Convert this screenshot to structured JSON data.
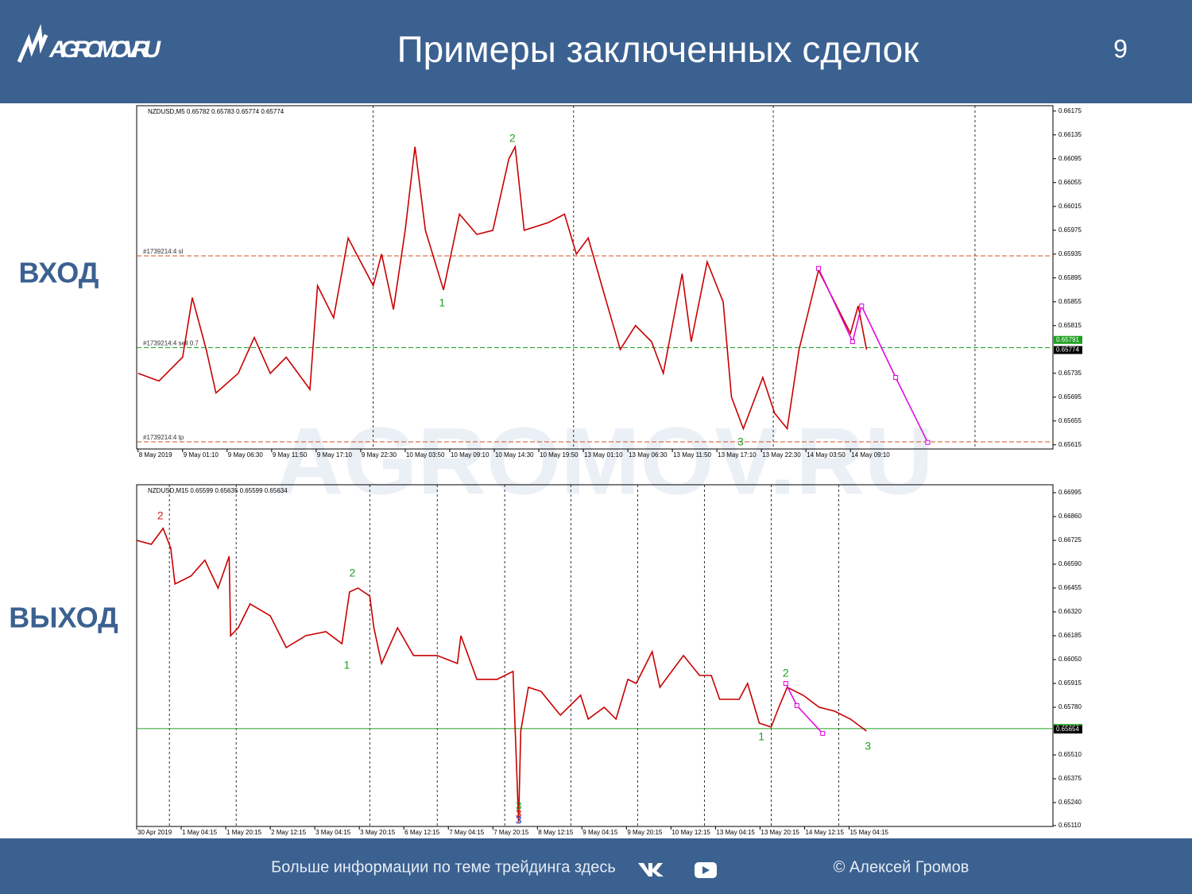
{
  "header": {
    "logo": "AGROMOV.RU",
    "title": "Примеры заключенных сделок",
    "page": "9"
  },
  "labels": {
    "entry": "ВХОД",
    "exit": "ВЫХОД"
  },
  "watermark": "AGROMOV.RU",
  "footer": {
    "info": "Больше информации по теме трейдинга здесь",
    "copyright": "© Алексей Громов"
  },
  "chart_data": [
    {
      "type": "line",
      "title": "NZDUSD,M5  0.65782 0.65783 0.65774 0.65774",
      "color": "#c80000",
      "x": [
        0,
        30,
        64,
        78,
        98,
        112,
        144,
        167,
        190,
        213,
        247,
        258,
        281,
        302,
        338,
        350,
        367,
        384,
        398,
        413,
        439,
        462,
        487,
        510,
        533,
        542,
        555,
        590,
        613,
        630,
        647,
        670,
        693,
        715,
        738,
        755,
        782,
        795,
        818,
        841,
        853,
        870,
        898,
        915,
        933,
        950,
        978,
        1001,
        1024,
        1035,
        1047
      ],
      "values": [
        0.65735,
        0.65722,
        0.65762,
        0.65862,
        0.65775,
        0.65702,
        0.65735,
        0.65795,
        0.65735,
        0.65762,
        0.65708,
        0.65882,
        0.65828,
        0.65962,
        0.65882,
        0.65935,
        0.65842,
        0.65975,
        0.66115,
        0.65975,
        0.65875,
        0.66002,
        0.65968,
        0.65975,
        0.66095,
        0.66115,
        0.65975,
        0.65988,
        0.66002,
        0.65935,
        0.65962,
        0.65868,
        0.65775,
        0.65815,
        0.65788,
        0.65735,
        0.65902,
        0.65788,
        0.65922,
        0.65855,
        0.65695,
        0.65642,
        0.65728,
        0.65668,
        0.65642,
        0.65775,
        0.65908,
        0.65855,
        0.65802,
        0.65848,
        0.65775
      ],
      "projection": {
        "color": "#e000e0",
        "x": [
          978,
          1027,
          1040,
          1089,
          1135
        ],
        "values": [
          0.65911,
          0.65788,
          0.65848,
          0.65728,
          0.65619
        ]
      },
      "xlim": [
        -2,
        1315
      ],
      "xticks": [
        {
          "value": 0,
          "label": "8 May 2019"
        },
        {
          "value": 64,
          "label": "9 May 01:10"
        },
        {
          "value": 128,
          "label": "9 May 06:30"
        },
        {
          "value": 192,
          "label": "9 May 11:50"
        },
        {
          "value": 256,
          "label": "9 May 17:10"
        },
        {
          "value": 320,
          "label": "9 May 22:30"
        },
        {
          "value": 384,
          "label": "10 May 03:50"
        },
        {
          "value": 448,
          "label": "10 May 09:10"
        },
        {
          "value": 512,
          "label": "10 May 14:30"
        },
        {
          "value": 576,
          "label": "10 May 19:50"
        },
        {
          "value": 640,
          "label": "13 May 01:10"
        },
        {
          "value": 704,
          "label": "13 May 06:30"
        },
        {
          "value": 768,
          "label": "13 May 11:50"
        },
        {
          "value": 832,
          "label": "13 May 17:10"
        },
        {
          "value": 896,
          "label": "13 May 22:30"
        },
        {
          "value": 960,
          "label": "14 May 03:50"
        },
        {
          "value": 1024,
          "label": "14 May 09:10"
        }
      ],
      "ylim": [
        0.65608,
        0.66184
      ],
      "yticks": [
        0.66175,
        0.66135,
        0.66095,
        0.66055,
        0.66015,
        0.65975,
        0.65935,
        0.65895,
        0.65855,
        0.65815,
        0.65735,
        0.65695,
        0.65655,
        0.65615
      ],
      "separators": [
        338,
        626,
        913,
        1203
      ],
      "levels": [
        {
          "value": 0.65932,
          "label": "#1739214:4 sl",
          "color": "#d05020"
        },
        {
          "value": 0.65778,
          "label": "#1739214:4 sell 0.7",
          "color": "#20a020"
        },
        {
          "value": 0.6562,
          "label": "#1739214:4 tp",
          "color": "#d05020"
        }
      ],
      "price_labels": [
        {
          "value": 0.65791,
          "color": "#20a020"
        },
        {
          "value": 0.65774,
          "color": "#000000"
        }
      ],
      "waves": [
        {
          "text": "1",
          "x": 437,
          "y": 0.65852,
          "color": "#20a020"
        },
        {
          "text": "2",
          "x": 538,
          "y": 0.66128,
          "color": "#20a020"
        },
        {
          "text": "3",
          "x": 866,
          "y": 0.65619,
          "color": "#20a020"
        }
      ]
    },
    {
      "type": "line",
      "title": "NZDUSD,M15  0.65599 0.65635 0.65599 0.65634",
      "color": "#c80000",
      "x": [
        0,
        21,
        38,
        49,
        55,
        78,
        98,
        117,
        133,
        135,
        146,
        163,
        192,
        215,
        243,
        272,
        295,
        306,
        318,
        335,
        341,
        352,
        375,
        398,
        432,
        461,
        466,
        489,
        518,
        541,
        549,
        552,
        563,
        581,
        609,
        638,
        649,
        672,
        689,
        706,
        718,
        741,
        752,
        786,
        809,
        826,
        838,
        866,
        878,
        895,
        912,
        923,
        935,
        958,
        981,
        1003,
        1026,
        1049
      ],
      "values": [
        0.66725,
        0.66703,
        0.66793,
        0.6668,
        0.66478,
        0.66523,
        0.66613,
        0.66455,
        0.66635,
        0.66185,
        0.6623,
        0.66365,
        0.66298,
        0.66118,
        0.66185,
        0.66208,
        0.6614,
        0.66433,
        0.66455,
        0.6641,
        0.6623,
        0.66028,
        0.6623,
        0.66073,
        0.66073,
        0.66028,
        0.66185,
        0.65938,
        0.65938,
        0.65983,
        0.65128,
        0.65645,
        0.65893,
        0.6587,
        0.65735,
        0.65848,
        0.65713,
        0.6578,
        0.65713,
        0.65938,
        0.65915,
        0.66095,
        0.65893,
        0.66073,
        0.6596,
        0.6596,
        0.65825,
        0.65825,
        0.65915,
        0.6569,
        0.65668,
        0.6578,
        0.65893,
        0.65848,
        0.6578,
        0.65758,
        0.65713,
        0.65645
      ],
      "projection": {
        "color": "#e000e0",
        "x": [
          933,
          949,
          986
        ],
        "values": [
          0.65915,
          0.65789,
          0.65632
        ]
      },
      "xlim": [
        0,
        1317
      ],
      "xticks": [
        {
          "value": 0,
          "label": "30 Apr 2019"
        },
        {
          "value": 64,
          "label": "1 May 04:15"
        },
        {
          "value": 128,
          "label": "1 May 20:15"
        },
        {
          "value": 192,
          "label": "2 May 12:15"
        },
        {
          "value": 256,
          "label": "3 May 04:15"
        },
        {
          "value": 320,
          "label": "3 May 20:15"
        },
        {
          "value": 384,
          "label": "6 May 12:15"
        },
        {
          "value": 448,
          "label": "7 May 04:15"
        },
        {
          "value": 512,
          "label": "7 May 20:15"
        },
        {
          "value": 576,
          "label": "8 May 12:15"
        },
        {
          "value": 640,
          "label": "9 May 04:15"
        },
        {
          "value": 704,
          "label": "9 May 20:15"
        },
        {
          "value": 768,
          "label": "10 May 12:15"
        },
        {
          "value": 832,
          "label": "13 May 04:15"
        },
        {
          "value": 896,
          "label": "13 May 20:15"
        },
        {
          "value": 960,
          "label": "14 May 12:15"
        },
        {
          "value": 1024,
          "label": "15 May 04:15"
        }
      ],
      "ylim": [
        0.65105,
        0.6704
      ],
      "yticks": [
        0.66995,
        {
          "value": 0.6686,
          "label": "0.66860"
        },
        0.66725,
        {
          "value": 0.6659,
          "label": "0.66590"
        },
        0.66455,
        {
          "value": 0.6632,
          "label": "0.66320"
        },
        0.66185,
        {
          "value": 0.6605,
          "label": "0.66050"
        },
        0.65915,
        {
          "value": 0.6578,
          "label": "0.65780"
        },
        {
          "value": 0.6551,
          "label": "0.65510"
        },
        0.65375,
        {
          "value": 0.6524,
          "label": "0.65240"
        },
        {
          "value": 0.6511,
          "label": "0.65110"
        }
      ],
      "separators": [
        47,
        143,
        335,
        432,
        529,
        624,
        720,
        816,
        912,
        1009
      ],
      "levels": [
        {
          "value": 0.65659,
          "color": "#20a020"
        }
      ],
      "price_labels": [
        {
          "value": 0.65663,
          "color": "#20a020"
        },
        {
          "value": 0.65654,
          "color": "#000000"
        }
      ],
      "waves": [
        {
          "text": "2",
          "x": 34,
          "y": 0.6686,
          "color": "#d02020"
        },
        {
          "text": "2",
          "x": 310,
          "y": 0.66536,
          "color": "#20a020"
        },
        {
          "text": "1",
          "x": 302,
          "y": 0.66014,
          "color": "#20a020"
        },
        {
          "text": "3",
          "x": 549,
          "y": 0.65218,
          "color": "#20a020"
        },
        {
          "text": "3",
          "x": 549,
          "y": 0.65173,
          "color": "#d02020"
        },
        {
          "text": "3",
          "x": 549,
          "y": 0.65137,
          "color": "#2040d0"
        },
        {
          "text": "1",
          "x": 898,
          "y": 0.65609,
          "color": "#20a020"
        },
        {
          "text": "2",
          "x": 933,
          "y": 0.65969,
          "color": "#20a020"
        },
        {
          "text": "3",
          "x": 1051,
          "y": 0.65555,
          "color": "#20a020"
        }
      ]
    }
  ]
}
